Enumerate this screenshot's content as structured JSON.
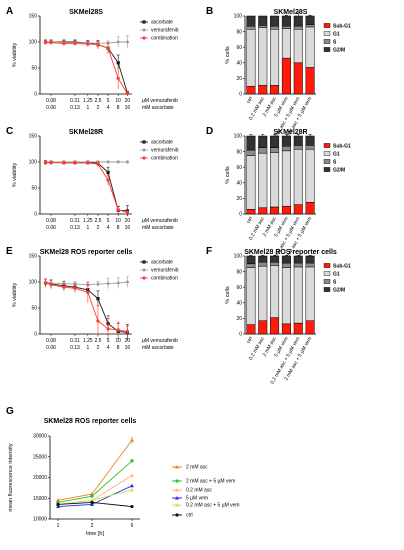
{
  "colors": {
    "ascorbate": "#1a1a1a",
    "vemurafenib": "#9e9e9e",
    "combination": "#ff3b30",
    "sub_g1": "#ff1a0a",
    "g1": "#d9d9d9",
    "s": "#8c8c8c",
    "g2m": "#333333",
    "g_2mM_asc": "#f07e1b",
    "g_2mM_asc_5uM_vem": "#27c21f",
    "g_02mM_asc": "#ffb07a",
    "g_5uM_vem": "#1b2fe0",
    "g_02mM_asc_5uM_vem": "#c8e060",
    "g_ctrl": "#111111"
  },
  "viability_x_labels": {
    "row1": [
      "0.08",
      "0.31",
      "1.25",
      "2.5",
      "5",
      "10",
      "20"
    ],
    "row2": [
      "0.06",
      "0.13",
      "1",
      "2",
      "4",
      "8",
      "16"
    ],
    "row1_unit": "µM vemurafenib",
    "row2_unit": "mM ascorbate"
  },
  "cellcycle_categories": [
    "ctrl",
    "0.2 mM asc",
    "2 mM asc",
    "5 µM vem",
    "0.2 mM asc + 5 µM vem",
    "2 mM asc + 5 µM vem"
  ],
  "cellcycle_legend": [
    "Sub-G1",
    "G1",
    "S",
    "G2/M"
  ],
  "chart_data": [
    {
      "panel": "A",
      "type": "line",
      "title": "SKMel28S",
      "ylabel": "% viability",
      "ylim": [
        0,
        150
      ],
      "yticks": [
        0,
        50,
        100,
        150
      ],
      "legend_position": "top-right",
      "series": [
        {
          "name": "ascorbate",
          "values": [
            100,
            100,
            100,
            100,
            98,
            95,
            88,
            60,
            2
          ],
          "errors": [
            4,
            4,
            4,
            4,
            5,
            8,
            10,
            15,
            3
          ]
        },
        {
          "name": "vemurafenib",
          "values": [
            100,
            100,
            99,
            99,
            98,
            98,
            98,
            100,
            100
          ],
          "errors": [
            3,
            3,
            3,
            3,
            3,
            3,
            4,
            10,
            12
          ]
        },
        {
          "name": "combination",
          "values": [
            99,
            99,
            97,
            97,
            96,
            95,
            88,
            30,
            1
          ],
          "errors": [
            4,
            4,
            4,
            4,
            5,
            6,
            10,
            20,
            3
          ]
        }
      ]
    },
    {
      "panel": "B",
      "type": "bar",
      "title": "SKMel28S",
      "ylabel": "% cells",
      "ylim": [
        0,
        100
      ],
      "yticks": [
        0,
        20,
        40,
        60,
        80,
        100
      ],
      "stacked": true,
      "series": [
        {
          "name": "Sub-G1",
          "values": [
            10,
            11,
            11,
            46,
            40,
            34
          ],
          "errors": [
            1,
            1,
            1,
            2,
            6,
            2
          ]
        },
        {
          "name": "G1",
          "values": [
            73,
            74,
            72,
            38,
            43,
            52
          ],
          "errors": [
            0,
            2,
            2,
            0,
            0,
            0
          ]
        },
        {
          "name": "S",
          "values": [
            4,
            3,
            4,
            3,
            4,
            3
          ]
        },
        {
          "name": "G2/M",
          "values": [
            13,
            12,
            13,
            13,
            13,
            11
          ],
          "errors": [
            0,
            0,
            0,
            1,
            5,
            1
          ]
        }
      ]
    },
    {
      "panel": "C",
      "type": "line",
      "title": "SKMel28R",
      "ylabel": "% viability",
      "ylim": [
        0,
        150
      ],
      "yticks": [
        0,
        50,
        100,
        150
      ],
      "legend_position": "top-right",
      "series": [
        {
          "name": "ascorbate",
          "values": [
            99,
            99,
            99,
            99,
            99,
            98,
            80,
            7,
            6
          ],
          "errors": [
            4,
            3,
            3,
            3,
            3,
            4,
            10,
            8,
            10
          ]
        },
        {
          "name": "vemurafenib",
          "values": [
            100,
            100,
            100,
            100,
            100,
            100,
            100,
            100,
            100
          ],
          "errors": [
            2,
            2,
            2,
            2,
            2,
            2,
            2,
            2,
            2
          ]
        },
        {
          "name": "combination",
          "values": [
            99,
            99,
            98,
            98,
            98,
            96,
            65,
            8,
            3
          ],
          "errors": [
            4,
            3,
            3,
            3,
            3,
            4,
            10,
            6,
            3
          ]
        }
      ]
    },
    {
      "panel": "D",
      "type": "bar",
      "title": "SKMel28R",
      "ylabel": "% cells",
      "ylim": [
        0,
        100
      ],
      "yticks": [
        0,
        20,
        40,
        60,
        80,
        100
      ],
      "stacked": true,
      "series": [
        {
          "name": "Sub-G1",
          "values": [
            6,
            8,
            9,
            10,
            12,
            15
          ],
          "errors": [
            1,
            2,
            3,
            2,
            3,
            4
          ]
        },
        {
          "name": "G1",
          "values": [
            69,
            70,
            70,
            71,
            71,
            68
          ],
          "errors": [
            2,
            2,
            1,
            1,
            2,
            2
          ]
        },
        {
          "name": "S",
          "values": [
            7,
            7,
            6,
            6,
            5,
            5
          ]
        },
        {
          "name": "G2/M",
          "values": [
            18,
            15,
            15,
            13,
            12,
            12
          ],
          "errors": [
            2,
            2,
            2,
            2,
            2,
            2
          ]
        }
      ]
    },
    {
      "panel": "E",
      "type": "line",
      "title": "SKMel28 ROS reporter cells",
      "ylabel": "% viability",
      "ylim": [
        0,
        150
      ],
      "yticks": [
        0,
        50,
        100,
        150
      ],
      "legend_position": "top-right",
      "series": [
        {
          "name": "ascorbate",
          "values": [
            98,
            96,
            93,
            90,
            85,
            68,
            20,
            5,
            3
          ],
          "errors": [
            8,
            8,
            8,
            8,
            8,
            15,
            15,
            15,
            15
          ]
        },
        {
          "name": "vemurafenib",
          "values": [
            100,
            98,
            97,
            96,
            95,
            96,
            97,
            98,
            100
          ],
          "errors": [
            5,
            5,
            5,
            5,
            5,
            5,
            10,
            10,
            10
          ]
        },
        {
          "name": "combination",
          "values": [
            98,
            95,
            90,
            88,
            80,
            25,
            10,
            8,
            5
          ],
          "errors": [
            8,
            8,
            8,
            8,
            20,
            30,
            20,
            15,
            10
          ]
        }
      ]
    },
    {
      "panel": "F",
      "type": "bar",
      "title": "SKMel28 ROS reporter cells",
      "ylabel": "% cells",
      "ylim": [
        0,
        100
      ],
      "yticks": [
        0,
        20,
        40,
        60,
        80,
        100
      ],
      "stacked": true,
      "series": [
        {
          "name": "Sub-G1",
          "values": [
            12,
            17,
            21,
            13,
            14,
            17
          ],
          "errors": [
            2,
            1,
            1,
            1,
            1,
            1
          ]
        },
        {
          "name": "G1",
          "values": [
            73,
            70,
            67,
            72,
            72,
            69
          ],
          "errors": [
            2,
            2,
            1,
            1,
            1,
            1
          ]
        },
        {
          "name": "S",
          "values": [
            5,
            5,
            4,
            6,
            5,
            5
          ]
        },
        {
          "name": "G2/M",
          "values": [
            10,
            8,
            8,
            9,
            9,
            9
          ],
          "errors": [
            1,
            1,
            1,
            1,
            1,
            1
          ]
        }
      ]
    },
    {
      "panel": "G",
      "type": "line",
      "title": "SKMel28 ROS reporter cells",
      "xlabel": "time [h]",
      "ylabel": "mean fluorescence intensity",
      "x": [
        1,
        2,
        6
      ],
      "xticks": [
        "1",
        "2",
        "6"
      ],
      "ylim": [
        10000,
        30000
      ],
      "yticks": [
        10000,
        15000,
        20000,
        25000,
        30000
      ],
      "legend_position": "right",
      "series": [
        {
          "name": "2 mM asc",
          "values": [
            14500,
            16000,
            29000
          ],
          "errors": [
            300,
            400,
            900
          ]
        },
        {
          "name": "2 mM asc + 5 µM vem",
          "values": [
            14000,
            15500,
            24000
          ]
        },
        {
          "name": "0.2 mM asc",
          "values": [
            13500,
            14500,
            20500
          ]
        },
        {
          "name": "5 µM vem",
          "values": [
            13000,
            13500,
            18000
          ]
        },
        {
          "name": "0.2 mM asc + 5 µM vem",
          "values": [
            13500,
            14500,
            17000
          ]
        },
        {
          "name": "ctrl",
          "values": [
            13500,
            14000,
            13000
          ]
        }
      ]
    }
  ]
}
